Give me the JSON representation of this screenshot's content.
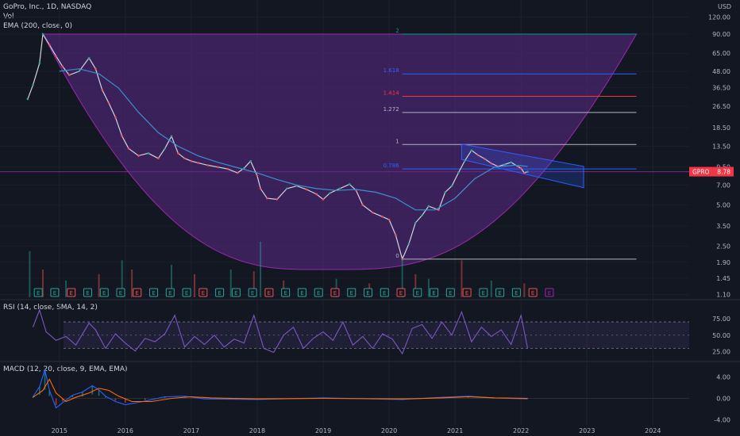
{
  "legend": {
    "symbol": "GoPro, Inc., 1D, NASDAQ",
    "vol": "Vol",
    "ema": "EMA (200, close, 0)",
    "rsi": "RSI (14, close, SMA, 14, 2)",
    "macd": "MACD (12, 20, close, 9, EMA, EMA)"
  },
  "currency": "USD",
  "price_tag": {
    "symbol": "GPRO",
    "value": "8.78",
    "color": "#f23645"
  },
  "colors": {
    "background": "#131722",
    "up": "#26a69a",
    "down": "#ef5350",
    "ema": "#3b8fcf",
    "cup_fill": "#5b2a86",
    "rsi": "#7e57c2",
    "macd": "#2962ff",
    "signal": "#ff6d00",
    "channel": "#2962ff"
  },
  "chart_data": [
    {
      "type": "line",
      "title": "GoPro, Inc., 1D, NASDAQ",
      "y_scale": "log",
      "x_ticks": [
        "2015",
        "2016",
        "2017",
        "2018",
        "2019",
        "2020",
        "2021",
        "2022",
        "2023",
        "2024"
      ],
      "y_ticks": [
        "120.00",
        "90.00",
        "65.00",
        "48.00",
        "36.50",
        "26.50",
        "18.50",
        "13.50",
        "9.50",
        "7.00",
        "5.00",
        "3.50",
        "2.50",
        "1.90",
        "1.45",
        "1.10"
      ],
      "ylim": [
        1.05,
        140
      ],
      "series": [
        {
          "name": "GPRO",
          "x": [
            2014.52,
            2014.6,
            2014.7,
            2014.75,
            2014.85,
            2014.95,
            2015.05,
            2015.15,
            2015.3,
            2015.45,
            2015.55,
            2015.65,
            2015.75,
            2015.85,
            2015.95,
            2016.05,
            2016.2,
            2016.35,
            2016.5,
            2016.6,
            2016.7,
            2016.8,
            2016.9,
            2017.0,
            2017.1,
            2017.25,
            2017.4,
            2017.55,
            2017.7,
            2017.8,
            2017.9,
            2018.0,
            2018.05,
            2018.15,
            2018.3,
            2018.45,
            2018.6,
            2018.75,
            2018.9,
            2019.0,
            2019.1,
            2019.25,
            2019.4,
            2019.5,
            2019.6,
            2019.75,
            2019.9,
            2020.0,
            2020.1,
            2020.2,
            2020.3,
            2020.4,
            2020.5,
            2020.6,
            2020.75,
            2020.85,
            2020.95,
            2021.05,
            2021.15,
            2021.25,
            2021.35,
            2021.45,
            2021.55,
            2021.65,
            2021.75,
            2021.85,
            2021.95,
            2022.0,
            2022.05,
            2022.1
          ],
          "values": [
            30,
            38,
            55,
            90,
            75,
            62,
            52,
            45,
            48,
            60,
            50,
            35,
            28,
            22,
            16,
            13,
            11.5,
            12,
            11,
            13,
            16,
            12,
            11,
            10.5,
            10.2,
            9.8,
            9.5,
            9.2,
            8.6,
            9.3,
            10.5,
            8.2,
            6.6,
            5.6,
            5.5,
            6.6,
            6.9,
            6.5,
            6.0,
            5.5,
            6.1,
            6.6,
            7.1,
            6.4,
            5.0,
            4.4,
            4.1,
            3.9,
            3.0,
            2.0,
            2.6,
            3.7,
            4.2,
            4.9,
            4.6,
            6.2,
            6.9,
            8.6,
            10.6,
            12.6,
            11.6,
            10.9,
            10.1,
            9.6,
            9.9,
            10.3,
            9.6,
            9.3,
            8.6,
            8.78
          ]
        },
        {
          "name": "EMA (200, close, 0)",
          "x": [
            2015.0,
            2015.3,
            2015.6,
            2015.9,
            2016.2,
            2016.5,
            2016.8,
            2017.1,
            2017.4,
            2017.7,
            2018.0,
            2018.3,
            2018.6,
            2018.9,
            2019.2,
            2019.5,
            2019.8,
            2020.1,
            2020.4,
            2020.7,
            2021.0,
            2021.3,
            2021.6,
            2021.9,
            2022.1
          ],
          "values": [
            48,
            50,
            46,
            36,
            24,
            17,
            13.5,
            11.5,
            10.3,
            9.4,
            8.6,
            7.7,
            7.0,
            6.6,
            6.4,
            6.5,
            6.2,
            5.6,
            4.6,
            4.6,
            5.6,
            7.8,
            9.5,
            9.8,
            9.6
          ]
        }
      ],
      "fibonacci": {
        "levels": [
          "2",
          "1.618",
          "1.414",
          "1.272",
          "1",
          "0.786",
          "0"
        ],
        "prices": [
          90,
          45.9,
          31.4,
          23.9,
          13.9,
          9.2,
          2.0
        ],
        "colors": [
          "#089981",
          "#2962ff",
          "#f23645",
          "#b2b5be",
          "#b2b5be",
          "#2962ff",
          "#b2b5be"
        ]
      },
      "cup": {
        "x_start": 2014.75,
        "x_bottom": 2019.0,
        "x_end": 2023.75,
        "rim_price": 90,
        "bottom_price": 1.68
      },
      "channel": {
        "upper": [
          [
            2021.1,
            14.0
          ],
          [
            2022.95,
            9.6
          ]
        ],
        "lower": [
          [
            2021.1,
            10.8
          ],
          [
            2022.95,
            6.7
          ]
        ]
      },
      "volume": {
        "x": [
          2014.55,
          2014.75,
          2015.1,
          2015.6,
          2015.95,
          2016.1,
          2016.7,
          2017.05,
          2017.6,
          2017.95,
          2018.05,
          2018.4,
          2019.2,
          2019.7,
          2020.2,
          2020.4,
          2020.6,
          2021.1,
          2021.55,
          2022.05
        ],
        "values": [
          50,
          30,
          18,
          25,
          40,
          30,
          35,
          25,
          30,
          28,
          60,
          18,
          20,
          15,
          45,
          25,
          20,
          40,
          18,
          15
        ]
      },
      "earnings_markers": [
        "E",
        "E",
        "E",
        "E",
        "E",
        "E",
        "E",
        "E",
        "E",
        "E",
        "E",
        "E",
        "E",
        "E",
        "E",
        "E",
        "E",
        "E",
        "E",
        "E",
        "E",
        "E",
        "E",
        "E",
        "E",
        "E",
        "E",
        "E",
        "E",
        "E",
        "E",
        "E"
      ]
    },
    {
      "type": "line",
      "title": "RSI (14, close, SMA, 14, 2)",
      "y_ticks": [
        "75.00",
        "50.00",
        "25.00"
      ],
      "ylim": [
        15,
        100
      ],
      "bands": [
        70,
        30
      ],
      "series": [
        {
          "name": "RSI",
          "x": [
            2014.6,
            2014.7,
            2014.8,
            2014.95,
            2015.1,
            2015.25,
            2015.45,
            2015.55,
            2015.7,
            2015.85,
            2016.0,
            2016.15,
            2016.3,
            2016.45,
            2016.6,
            2016.75,
            2016.9,
            2017.05,
            2017.2,
            2017.35,
            2017.5,
            2017.65,
            2017.8,
            2017.95,
            2018.1,
            2018.25,
            2018.4,
            2018.55,
            2018.7,
            2018.85,
            2019.0,
            2019.15,
            2019.3,
            2019.45,
            2019.6,
            2019.75,
            2019.9,
            2020.05,
            2020.2,
            2020.35,
            2020.5,
            2020.65,
            2020.8,
            2020.95,
            2021.1,
            2021.25,
            2021.4,
            2021.55,
            2021.7,
            2021.85,
            2022.0,
            2022.1
          ],
          "values": [
            62,
            88,
            55,
            42,
            48,
            35,
            68,
            58,
            30,
            52,
            38,
            26,
            45,
            40,
            52,
            80,
            32,
            48,
            36,
            50,
            32,
            44,
            38,
            80,
            30,
            24,
            50,
            62,
            30,
            45,
            55,
            42,
            70,
            35,
            48,
            30,
            52,
            44,
            22,
            60,
            66,
            45,
            70,
            50,
            85,
            40,
            62,
            48,
            58,
            36,
            80,
            30
          ]
        }
      ]
    },
    {
      "type": "line",
      "title": "MACD (12, 20, close, 9, EMA, EMA)",
      "y_ticks": [
        "4.00",
        "0.00",
        "-4.00"
      ],
      "ylim": [
        -5,
        6.5
      ],
      "series": [
        {
          "name": "MACD",
          "x": [
            2014.6,
            2014.7,
            2014.78,
            2014.85,
            2014.95,
            2015.05,
            2015.2,
            2015.35,
            2015.5,
            2015.6,
            2015.7,
            2015.85,
            2016.0,
            2016.3,
            2016.6,
            2016.9,
            2017.2,
            2018.0,
            2019.0,
            2020.2,
            2020.8,
            2021.2,
            2021.6,
            2022.1
          ],
          "values": [
            0.3,
            2.2,
            5.4,
            1.5,
            -1.8,
            -0.8,
            0.6,
            1.2,
            2.4,
            1.6,
            0.4,
            -0.6,
            -1.2,
            -0.5,
            0.3,
            0.4,
            -0.1,
            -0.2,
            0.1,
            -0.2,
            0.2,
            0.4,
            0.1,
            -0.1
          ]
        },
        {
          "name": "Signal",
          "x": [
            2014.6,
            2014.75,
            2014.85,
            2014.95,
            2015.1,
            2015.25,
            2015.45,
            2015.6,
            2015.75,
            2015.9,
            2016.1,
            2016.4,
            2016.7,
            2017.0,
            2017.3,
            2018.0,
            2019.0,
            2020.2,
            2020.8,
            2021.2,
            2021.6,
            2022.1
          ],
          "values": [
            0.2,
            1.5,
            3.6,
            1.0,
            -0.6,
            0.2,
            1.0,
            1.9,
            1.5,
            0.4,
            -0.6,
            -0.6,
            0.0,
            0.3,
            0.1,
            -0.1,
            0.0,
            -0.1,
            0.1,
            0.3,
            0.1,
            0.0
          ]
        }
      ]
    }
  ]
}
